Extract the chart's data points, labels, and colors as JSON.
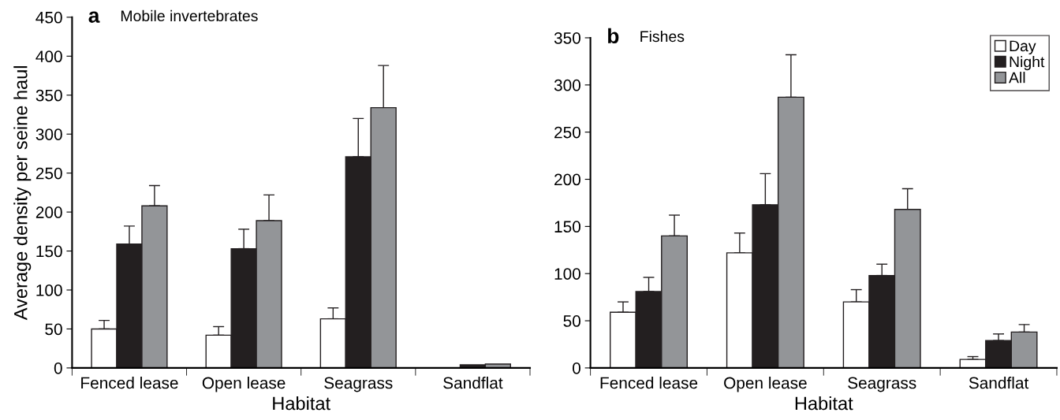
{
  "chart_data": [
    {
      "type": "bar",
      "title": "a",
      "subtitle": "Mobile invertebrates",
      "xlabel": "Habitat",
      "ylabel": "Average density per seine haul",
      "categories": [
        "Fenced lease",
        "Open lease",
        "Seagrass",
        "Sandflat"
      ],
      "series": [
        {
          "color": "#ffffff",
          "values": [
            50,
            42,
            63,
            null
          ],
          "errors": [
            [
              50,
              61
            ],
            [
              42,
              53
            ],
            [
              63,
              77
            ],
            null
          ]
        },
        {
          "color": "#231f20",
          "values": [
            159,
            153,
            271,
            4
          ],
          "errors": [
            [
              159,
              182
            ],
            [
              153,
              178
            ],
            [
              271,
              320
            ],
            null
          ]
        },
        {
          "color": "#939598",
          "values": [
            208,
            189,
            334,
            5
          ],
          "errors": [
            [
              208,
              234
            ],
            [
              189,
              222
            ],
            [
              334,
              388
            ],
            null
          ]
        }
      ],
      "ylim": [
        0,
        450
      ],
      "yticks": [
        0,
        50,
        100,
        150,
        200,
        250,
        300,
        350,
        400,
        450
      ],
      "grid": false,
      "legend": false
    },
    {
      "type": "bar",
      "title": "b",
      "subtitle": "Fishes",
      "xlabel": "Habitat",
      "categories": [
        "Fenced lease",
        "Open lease",
        "Seagrass",
        "Sandflat"
      ],
      "series": [
        {
          "name": "Day",
          "color": "#ffffff",
          "values": [
            59,
            122,
            70,
            9
          ],
          "errors": [
            [
              59,
              70
            ],
            [
              122,
              143
            ],
            [
              70,
              83
            ],
            [
              9,
              12
            ]
          ]
        },
        {
          "name": "Night",
          "color": "#231f20",
          "values": [
            81,
            173,
            98,
            29
          ],
          "errors": [
            [
              81,
              96
            ],
            [
              173,
              206
            ],
            [
              98,
              110
            ],
            [
              29,
              36
            ]
          ]
        },
        {
          "name": "All",
          "color": "#939598",
          "values": [
            140,
            287,
            168,
            38
          ],
          "errors": [
            [
              140,
              162
            ],
            [
              287,
              332
            ],
            [
              168,
              190
            ],
            [
              38,
              46
            ]
          ]
        }
      ],
      "ylim": [
        0,
        350
      ],
      "yticks": [
        0,
        50,
        100,
        150,
        200,
        250,
        300,
        350
      ],
      "grid": false,
      "legend": "top right"
    }
  ]
}
